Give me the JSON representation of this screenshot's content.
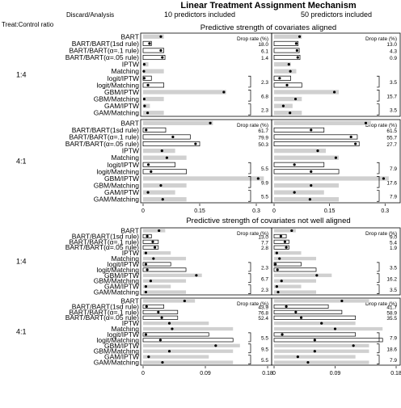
{
  "title": "Linear Treatment Assignment Mechanism",
  "col_headers": [
    "10 predictors included",
    "50 predictors included"
  ],
  "treat_header": "Treat:Control ratio",
  "method_header": "Discard/Analysis",
  "drop_rate_label": "Drop rate (%)",
  "methods": [
    "BART",
    "BART/BART(1sd rule)",
    "BART/BART(α=.1 rule)",
    "BART/BART(α=.05 rule)",
    "IPTW",
    "Matching",
    "logit/IPTW",
    "logit/Matching",
    "GBM/IPTW",
    "GBM/Matching",
    "GAM/IPTW",
    "GAM/Matching"
  ],
  "colors": {
    "gray_bar": "#d0d0d0",
    "open_bar": "#ffffff",
    "point": "#000000"
  },
  "chart_data": {
    "type": "bar",
    "description_keys": [
      "gray bar = bias range",
      "open bar = discarded-method estimate",
      "dot = point estimate"
    ],
    "sections": [
      {
        "title": "Predictive strength of covariates aligned",
        "x_ticks": [
          "0",
          "0.15",
          "0.3"
        ],
        "xlim": [
          0,
          0.33
        ],
        "ratios": [
          {
            "ratio": "1:4",
            "panels": [
              {
                "bars": [
                  [
                    0.055,
                    "g",
                    0.047
                  ],
                  [
                    0.022,
                    "o",
                    0.017
                  ],
                  [
                    0.055,
                    "o",
                    0.047
                  ],
                  [
                    0.058,
                    "o",
                    0.051
                  ],
                  [
                    0.014,
                    "g",
                    0.003
                  ],
                  [
                    0.055,
                    "g",
                    0.002
                  ],
                  [
                    0.022,
                    "o",
                    0.003
                  ],
                  [
                    0.055,
                    "o",
                    0.013
                  ],
                  [
                    0.22,
                    "g",
                    0.214
                  ],
                  [
                    0.055,
                    "g",
                    0.003
                  ],
                  [
                    0.018,
                    "g",
                    0.004
                  ],
                  [
                    0.055,
                    "g",
                    0.012
                  ]
                ],
                "drops": {
                  "1": "18.0",
                  "2": "6.1",
                  "3": "1.4",
                  "7": "2.3",
                  "9": "6.8",
                  "11": "2.3"
                }
              },
              {
                "bars": [
                  [
                    0.075,
                    "g",
                    0.069
                  ],
                  [
                    0.065,
                    "o",
                    0.06
                  ],
                  [
                    0.068,
                    "o",
                    0.062
                  ],
                  [
                    0.07,
                    "o",
                    0.064
                  ],
                  [
                    0.045,
                    "g",
                    0.04
                  ],
                  [
                    0.06,
                    "g",
                    0.044
                  ],
                  [
                    0.045,
                    "o",
                    0.015
                  ],
                  [
                    0.075,
                    "o",
                    0.035
                  ],
                  [
                    0.175,
                    "g",
                    0.163
                  ],
                  [
                    0.075,
                    "g",
                    0.058
                  ],
                  [
                    0.05,
                    "g",
                    0.025
                  ],
                  [
                    0.075,
                    "g",
                    0.043
                  ]
                ],
                "drops": {
                  "1": "13.0",
                  "2": "4.3",
                  "3": "0.9",
                  "7": "3.5",
                  "9": "15.7",
                  "11": "3.5"
                }
              }
            ]
          },
          {
            "ratio": "4:1",
            "panels": [
              {
                "bars": [
                  [
                    0.185,
                    "g",
                    0.178
                  ],
                  [
                    0.06,
                    "o",
                    0.008
                  ],
                  [
                    0.125,
                    "o",
                    0.079
                  ],
                  [
                    0.15,
                    "o",
                    0.139
                  ],
                  [
                    0.085,
                    "g",
                    0.05
                  ],
                  [
                    0.115,
                    "g",
                    0.063
                  ],
                  [
                    0.085,
                    "o",
                    0.014
                  ],
                  [
                    0.115,
                    "o",
                    0.021
                  ],
                  [
                    0.32,
                    "g",
                    0.305
                  ],
                  [
                    0.115,
                    "g",
                    0.047
                  ],
                  [
                    0.085,
                    "g",
                    0.013
                  ],
                  [
                    0.115,
                    "g",
                    0.052
                  ]
                ],
                "drops": {
                  "1": "61.7",
                  "2": "79.9",
                  "3": "50.3",
                  "7": "5.5",
                  "9": "9.9",
                  "11": "5.5"
                }
              },
              {
                "bars": [
                  [
                    0.262,
                    "g",
                    0.248
                  ],
                  [
                    0.135,
                    "o",
                    0.1
                  ],
                  [
                    0.225,
                    "o",
                    0.208
                  ],
                  [
                    0.23,
                    "o",
                    0.22
                  ],
                  [
                    0.14,
                    "g",
                    0.118
                  ],
                  [
                    0.175,
                    "g",
                    0.167
                  ],
                  [
                    0.135,
                    "o",
                    0.055
                  ],
                  [
                    0.175,
                    "o",
                    0.1
                  ],
                  [
                    0.31,
                    "g",
                    0.296
                  ],
                  [
                    0.175,
                    "g",
                    0.1
                  ],
                  [
                    0.135,
                    "g",
                    0.055
                  ],
                  [
                    0.175,
                    "g",
                    0.097
                  ]
                ],
                "drops": {
                  "1": "61.5",
                  "2": "55.7",
                  "3": "27.7",
                  "7": "7.9",
                  "9": "17.6",
                  "11": "7.9"
                }
              }
            ]
          }
        ]
      },
      {
        "title": "Predictive strength of covariates not well aligned",
        "x_ticks": [
          "0",
          "0.09",
          "0.18"
        ],
        "xlim": [
          0,
          0.18
        ],
        "ratios": [
          {
            "ratio": "1:4",
            "panels": [
              {
                "bars": [
                  [
                    0.032,
                    "g",
                    0.023
                  ],
                  [
                    0.012,
                    "o",
                    0.006
                  ],
                  [
                    0.022,
                    "o",
                    0.014
                  ],
                  [
                    0.022,
                    "o",
                    0.017
                  ],
                  [
                    0.04,
                    "g",
                    0.004
                  ],
                  [
                    0.062,
                    "g",
                    0.015
                  ],
                  [
                    0.04,
                    "o",
                    0.004
                  ],
                  [
                    0.062,
                    "o",
                    0.006
                  ],
                  [
                    0.085,
                    "g",
                    0.077
                  ],
                  [
                    0.062,
                    "g",
                    0.011
                  ],
                  [
                    0.04,
                    "g",
                    0.004
                  ],
                  [
                    0.062,
                    "g",
                    0.004
                  ]
                ],
                "drops": {
                  "1": "13.0",
                  "2": "7.7",
                  "3": "2.8",
                  "7": "2.3",
                  "9": "6.7",
                  "11": "2.3"
                }
              },
              {
                "bars": [
                  [
                    0.032,
                    "g",
                    0.026
                  ],
                  [
                    0.018,
                    "o",
                    0.01
                  ],
                  [
                    0.022,
                    "o",
                    0.016
                  ],
                  [
                    0.022,
                    "o",
                    0.018
                  ],
                  [
                    0.04,
                    "g",
                    0.004
                  ],
                  [
                    0.062,
                    "g",
                    0.008
                  ],
                  [
                    0.04,
                    "o",
                    0.002
                  ],
                  [
                    0.062,
                    "o",
                    0.005
                  ],
                  [
                    0.085,
                    "g",
                    0.063
                  ],
                  [
                    0.062,
                    "g",
                    0.011
                  ],
                  [
                    0.04,
                    "g",
                    0.004
                  ],
                  [
                    0.062,
                    "g",
                    0.006
                  ]
                ],
                "drops": {
                  "1": "9.0",
                  "2": "5.4",
                  "3": "1.9",
                  "7": "3.5",
                  "9": "16.2",
                  "11": "3.5"
                }
              }
            ]
          },
          {
            "ratio": "4:1",
            "panels": [
              {
                "bars": [
                  [
                    0.075,
                    "g",
                    0.06
                  ],
                  [
                    0.03,
                    "o",
                    0.005
                  ],
                  [
                    0.05,
                    "o",
                    0.022
                  ],
                  [
                    0.05,
                    "o",
                    0.027
                  ],
                  [
                    0.095,
                    "g",
                    0.038
                  ],
                  [
                    0.13,
                    "g",
                    0.042
                  ],
                  [
                    0.095,
                    "o",
                    0.004
                  ],
                  [
                    0.13,
                    "o",
                    0.025
                  ],
                  [
                    0.14,
                    "g",
                    0.105
                  ],
                  [
                    0.13,
                    "g",
                    0.038
                  ],
                  [
                    0.095,
                    "g",
                    0.008
                  ],
                  [
                    0.13,
                    "g",
                    0.028
                  ]
                ],
                "drops": {
                  "1": "43.9",
                  "2": "76.8",
                  "3": "52.4",
                  "7": "5.5",
                  "9": "9.5",
                  "11": "5.5"
                }
              },
              {
                "bars": [
                  [
                    0.14,
                    "g",
                    0.1
                  ],
                  [
                    0.08,
                    "o",
                    0.018
                  ],
                  [
                    0.1,
                    "o",
                    0.032
                  ],
                  [
                    0.12,
                    "o",
                    0.04
                  ],
                  [
                    0.12,
                    "g",
                    0.07
                  ],
                  [
                    0.16,
                    "g",
                    0.09
                  ],
                  [
                    0.12,
                    "o",
                    0.012
                  ],
                  [
                    0.16,
                    "o",
                    0.06
                  ],
                  [
                    0.14,
                    "g",
                    0.117
                  ],
                  [
                    0.14,
                    "g",
                    0.06
                  ],
                  [
                    0.12,
                    "g",
                    0.035
                  ],
                  [
                    0.14,
                    "g",
                    0.05
                  ]
                ],
                "drops": {
                  "1": "41.7",
                  "2": "58.9",
                  "3": "35.5",
                  "7": "7.9",
                  "9": "18.6",
                  "11": "7.9"
                }
              }
            ]
          }
        ]
      }
    ]
  }
}
